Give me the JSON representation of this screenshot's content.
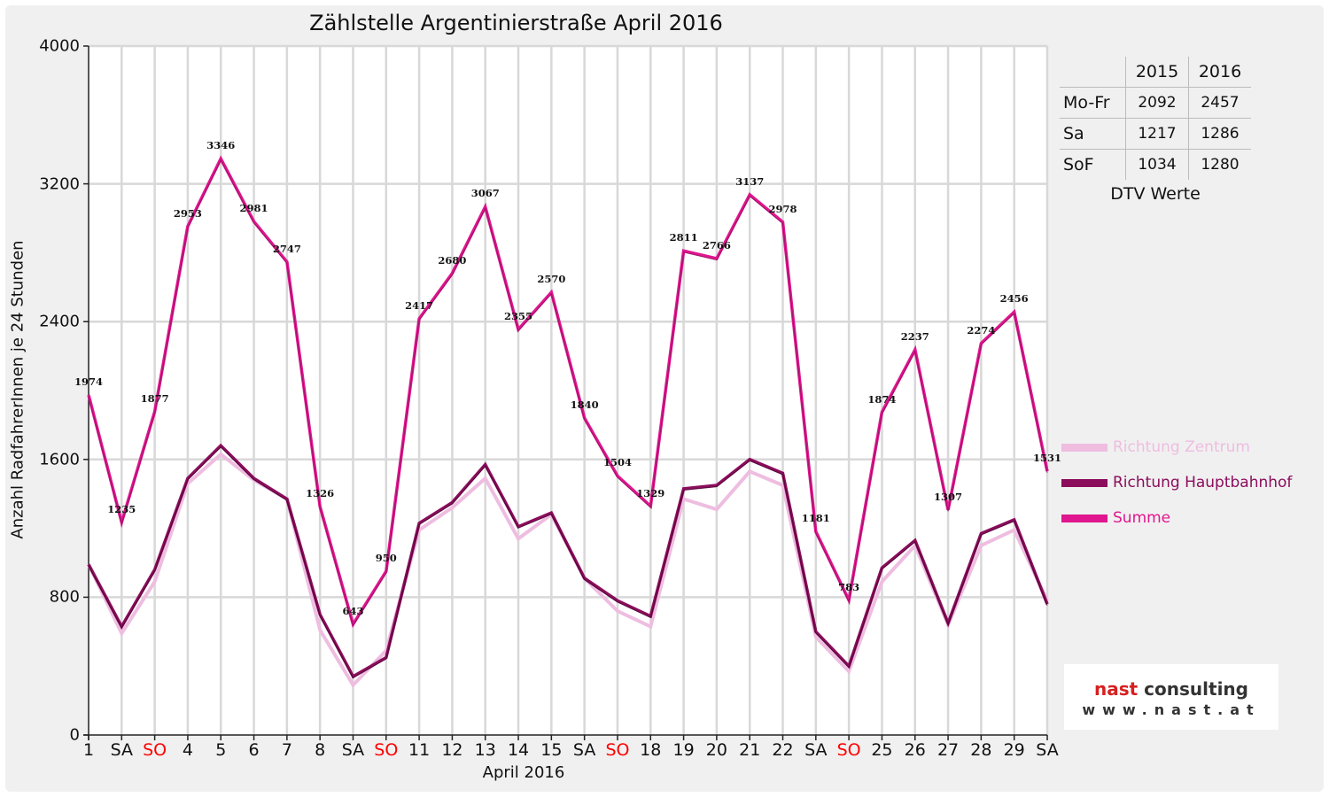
{
  "chart_data": {
    "type": "line",
    "title": "Zählstelle Argentinierstraße April 2016",
    "xlabel": "April 2016",
    "ylabel": "Anzahl RadfahrerInnen je 24 Stunden",
    "ylim": [
      0,
      4000
    ],
    "yticks": [
      "0",
      "800",
      "1600",
      "2400",
      "3200",
      "4000"
    ],
    "categories": [
      "1",
      "SA",
      "SO",
      "4",
      "5",
      "6",
      "7",
      "8",
      "SA",
      "SO",
      "11",
      "12",
      "13",
      "14",
      "15",
      "SA",
      "SO",
      "18",
      "19",
      "20",
      "21",
      "22",
      "SA",
      "SO",
      "25",
      "26",
      "27",
      "28",
      "29",
      "SA"
    ],
    "sunday_flags": [
      false,
      false,
      true,
      false,
      false,
      false,
      false,
      false,
      false,
      true,
      false,
      false,
      false,
      false,
      false,
      false,
      true,
      false,
      false,
      false,
      false,
      false,
      false,
      true,
      false,
      false,
      false,
      false,
      false,
      false
    ],
    "grid": true,
    "legend_position": "right",
    "series": [
      {
        "name": "Richtung Zentrum",
        "color": "#eebde0",
        "values": [
          990,
          590,
          890,
          1460,
          1630,
          1480,
          1370,
          610,
          290,
          490,
          1190,
          1320,
          1490,
          1140,
          1280,
          910,
          720,
          630,
          1370,
          1310,
          1530,
          1450,
          570,
          370,
          890,
          1100,
          640,
          1100,
          1190,
          780
        ]
      },
      {
        "name": "Richtung Hauptbahnhof",
        "color": "#8b0d5c",
        "values": [
          990,
          630,
          960,
          1490,
          1680,
          1490,
          1370,
          700,
          340,
          450,
          1230,
          1350,
          1570,
          1210,
          1290,
          910,
          780,
          690,
          1430,
          1450,
          1600,
          1520,
          600,
          400,
          970,
          1130,
          650,
          1170,
          1250,
          760
        ]
      },
      {
        "name": "Summe",
        "color": "#e0168e",
        "values": [
          1974,
          1235,
          1877,
          2953,
          3346,
          2981,
          2747,
          1326,
          643,
          950,
          2417,
          2680,
          3067,
          2355,
          2570,
          1840,
          1504,
          1329,
          2811,
          2766,
          3137,
          2978,
          1181,
          783,
          1874,
          2237,
          1307,
          2274,
          2456,
          1531
        ]
      }
    ],
    "data_labels": [
      "1974",
      "1235",
      "1877",
      "2953",
      "3346",
      "2981",
      "2747",
      "1326",
      "643",
      "950",
      "2417",
      "2680",
      "3067",
      "2355",
      "2570",
      "1840",
      "1504",
      "1329",
      "2811",
      "2766",
      "3137",
      "2978",
      "1181",
      "783",
      "1874",
      "2237",
      "1307",
      "2274",
      "2456",
      "1531"
    ]
  },
  "dtv_table": {
    "headers": [
      "",
      "2015",
      "2016"
    ],
    "rows": [
      {
        "label": "Mo-Fr",
        "v2015": "2092",
        "v2016": "2457"
      },
      {
        "label": "Sa",
        "v2015": "1217",
        "v2016": "1286"
      },
      {
        "label": "SoF",
        "v2015": "1034",
        "v2016": "1280"
      }
    ],
    "caption": "DTV Werte"
  },
  "legend": [
    {
      "label": "Richtung Zentrum",
      "color": "#eebde0"
    },
    {
      "label": "Richtung Hauptbahnhof",
      "color": "#8b0d5c"
    },
    {
      "label": "Summe",
      "color": "#e0168e"
    }
  ],
  "logo": {
    "name_part1": "nast",
    "name_part2": "consulting",
    "url": "www.nast.at"
  }
}
